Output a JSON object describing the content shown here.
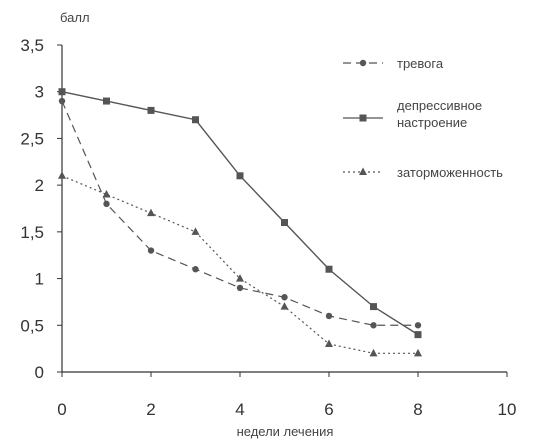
{
  "chart_data": {
    "type": "line",
    "ylabel": "балл",
    "xlabel": "недели лечения",
    "xlim": [
      0,
      10
    ],
    "ylim": [
      0,
      3.5
    ],
    "xticks": [
      0,
      2,
      4,
      6,
      8,
      10
    ],
    "xtick_labels": [
      "0",
      "2",
      "4",
      "6",
      "8",
      "10"
    ],
    "yticks": [
      0,
      0.5,
      1,
      1.5,
      2,
      2.5,
      3,
      3.5
    ],
    "ytick_labels": [
      "0",
      "0,5",
      "1",
      "1,5",
      "2",
      "2,5",
      "3",
      "3,5"
    ],
    "grid": false,
    "legend_position": "right",
    "series": [
      {
        "name": "тревога",
        "line_style": "dashed",
        "marker": "circle",
        "color": "#555555",
        "x": [
          0,
          1,
          2,
          3,
          4,
          5,
          6,
          7,
          8
        ],
        "y": [
          2.9,
          1.8,
          1.3,
          1.1,
          0.9,
          0.8,
          0.6,
          0.5,
          0.5
        ]
      },
      {
        "name_lines": [
          "депрессивное",
          "настроение"
        ],
        "line_style": "solid",
        "marker": "square",
        "color": "#555555",
        "x": [
          0,
          1,
          2,
          3,
          4,
          5,
          6,
          7,
          8
        ],
        "y": [
          3.0,
          2.9,
          2.8,
          2.7,
          2.1,
          1.6,
          1.1,
          0.7,
          0.4
        ]
      },
      {
        "name": "заторможенность",
        "line_style": "dotted",
        "marker": "triangle",
        "color": "#555555",
        "x": [
          0,
          1,
          2,
          3,
          4,
          5,
          6,
          7,
          8
        ],
        "y": [
          2.1,
          1.9,
          1.7,
          1.5,
          1.0,
          0.7,
          0.3,
          0.2,
          0.2
        ]
      }
    ]
  }
}
